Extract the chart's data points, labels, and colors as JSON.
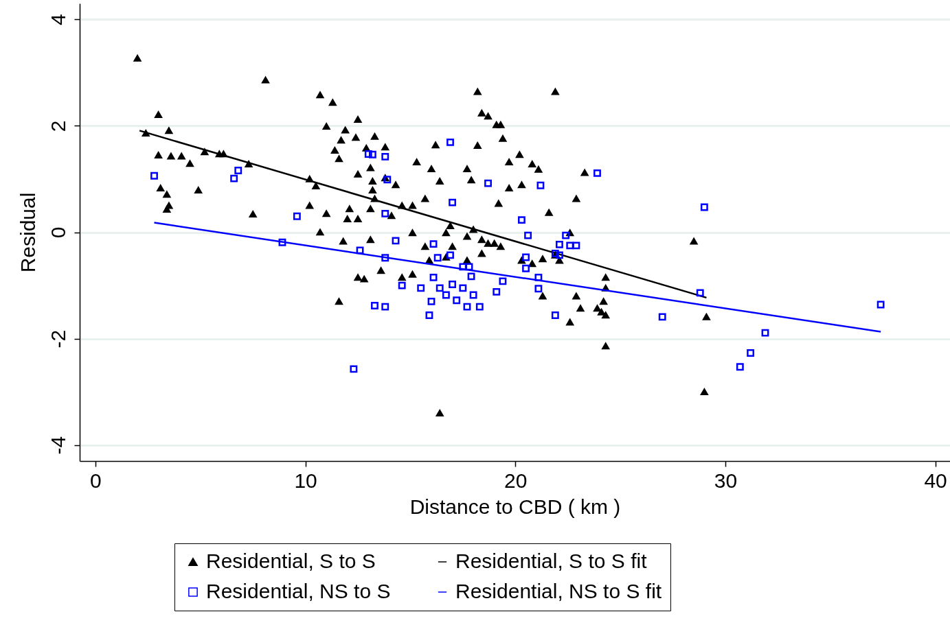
{
  "chart_data": {
    "type": "scatter",
    "xlabel": "Distance to CBD ( km )",
    "ylabel": "Residual",
    "xlim": [
      -0.75,
      40.7
    ],
    "ylim": [
      -4.3,
      4.3
    ],
    "xticks": [
      0,
      10,
      20,
      30,
      40
    ],
    "yticks": [
      -4,
      -2,
      0,
      2,
      4
    ],
    "grid": "y",
    "legend": "bottom",
    "series": [
      {
        "name": "Residential, S to S",
        "type": "scatter",
        "marker": "triangle",
        "color": "#000000",
        "x": [
          2.0,
          2.4,
          3.0,
          3.0,
          3.6,
          4.1,
          3.5,
          4.5,
          3.1,
          3.4,
          3.4,
          3.5,
          4.9,
          8.1,
          5.2,
          5.9,
          6.1,
          7.3,
          7.5,
          10.7,
          11.3,
          10.2,
          10.2,
          11.0,
          10.5,
          12.5,
          11.6,
          11.9,
          11.7,
          11.4,
          12.4,
          12.9,
          13.3,
          13.8,
          12.5,
          13.1,
          13.2,
          13.2,
          13.3,
          13.1,
          12.1,
          12.0,
          12.5,
          11.0,
          10.7,
          11.8,
          13.1,
          13.8,
          14.3,
          14.6,
          15.3,
          16.0,
          16.4,
          15.7,
          16.2,
          17.7,
          18.2,
          18.4,
          18.7,
          19.1,
          19.3,
          19.4,
          18.2,
          17.9,
          19.7,
          20.2,
          20.8,
          21.1,
          20.3,
          19.7,
          19.2,
          21.9,
          21.6,
          22.9,
          23.3,
          15.1,
          15.7,
          16.7,
          17.0,
          17.7,
          18.4,
          18.7,
          19.0,
          19.3,
          18.4,
          17.7,
          16.7,
          15.9,
          15.1,
          14.6,
          13.6,
          12.5,
          12.8,
          11.6,
          16.4,
          20.3,
          20.8,
          21.3,
          21.3,
          21.9,
          22.1,
          22.6,
          22.6,
          22.9,
          23.1,
          24.3,
          24.3,
          24.2,
          24.1,
          24.3,
          23.9,
          24.3,
          28.5,
          29.1,
          29.0,
          15.1,
          14.1,
          16.9,
          18.0
        ],
        "values": [
          3.27,
          1.86,
          2.21,
          1.45,
          1.43,
          1.43,
          1.91,
          1.29,
          0.83,
          0.71,
          0.43,
          0.5,
          0.79,
          2.86,
          1.51,
          1.47,
          1.47,
          1.28,
          0.34,
          2.58,
          2.44,
          1.0,
          0.5,
          1.99,
          0.87,
          2.12,
          1.38,
          1.92,
          1.73,
          1.54,
          1.78,
          1.58,
          1.8,
          1.6,
          1.09,
          1.21,
          0.96,
          0.79,
          0.63,
          0.44,
          0.44,
          0.25,
          0.25,
          0.35,
          0.0,
          -0.17,
          -0.14,
          1.02,
          0.89,
          0.5,
          1.32,
          1.19,
          0.96,
          0.63,
          1.64,
          1.19,
          2.64,
          2.24,
          2.18,
          2.02,
          2.02,
          1.76,
          1.63,
          0.98,
          1.32,
          1.46,
          1.28,
          1.18,
          0.89,
          0.83,
          0.54,
          2.64,
          0.37,
          0.63,
          1.12,
          -0.01,
          -0.27,
          -0.01,
          -0.27,
          -0.08,
          -0.14,
          -0.21,
          -0.21,
          -0.27,
          -0.4,
          -0.53,
          -0.47,
          -0.53,
          -0.79,
          -0.85,
          -0.72,
          -0.85,
          -0.88,
          -1.3,
          -3.4,
          -0.53,
          -0.59,
          -1.2,
          -0.5,
          -0.43,
          -0.53,
          -0.01,
          -1.69,
          -1.2,
          -1.43,
          -0.85,
          -1.05,
          -1.3,
          -1.5,
          -1.56,
          -1.43,
          -2.14,
          -0.17,
          -1.59,
          -3.0,
          0.5,
          0.31,
          0.12,
          0.05
        ]
      },
      {
        "name": "Residential, S to S fit",
        "type": "line",
        "color": "#000000",
        "x": [
          2.1,
          29.1
        ],
        "values": [
          1.91,
          -1.23
        ]
      },
      {
        "name": "Residential, NS to S",
        "type": "scatter",
        "marker": "square",
        "color": "#0000ff",
        "x": [
          2.8,
          6.8,
          6.6,
          9.6,
          8.9,
          12.3,
          12.6,
          13.0,
          13.2,
          13.8,
          13.9,
          13.8,
          13.8,
          14.3,
          13.3,
          13.8,
          14.6,
          15.5,
          16.1,
          16.3,
          16.9,
          17.0,
          16.9,
          17.5,
          17.8,
          15.9,
          16.0,
          16.1,
          16.4,
          16.7,
          17.0,
          17.2,
          17.5,
          17.9,
          18.0,
          18.3,
          17.7,
          18.7,
          19.1,
          19.4,
          20.3,
          20.6,
          20.5,
          20.5,
          21.2,
          21.1,
          21.1,
          21.9,
          22.1,
          21.9,
          22.1,
          22.4,
          22.6,
          22.9,
          23.9,
          27.0,
          28.8,
          29.0,
          30.7,
          31.2,
          31.9,
          37.4
        ],
        "values": [
          1.06,
          1.16,
          1.01,
          0.3,
          -0.19,
          -2.57,
          -0.34,
          1.47,
          1.46,
          1.42,
          0.99,
          0.35,
          -0.48,
          -0.16,
          -1.38,
          -1.4,
          -1.0,
          -1.05,
          -0.22,
          -0.48,
          1.69,
          0.56,
          -0.43,
          -0.65,
          -0.65,
          -1.56,
          -1.3,
          -0.85,
          -1.05,
          -1.18,
          -0.98,
          -1.28,
          -1.05,
          -0.83,
          -1.18,
          -1.4,
          -1.4,
          0.92,
          -1.12,
          -0.92,
          0.23,
          -0.06,
          -0.47,
          -0.68,
          0.88,
          -0.85,
          -1.06,
          -1.56,
          -0.23,
          -0.4,
          -0.43,
          -0.06,
          -0.25,
          -0.25,
          1.11,
          -1.59,
          -1.14,
          0.47,
          -2.53,
          -2.27,
          -1.89,
          -1.36
        ]
      },
      {
        "name": "Residential, NS to S fit",
        "type": "line",
        "color": "#0000ff",
        "x": [
          2.8,
          37.4
        ],
        "values": [
          0.18,
          -1.87
        ]
      }
    ]
  }
}
